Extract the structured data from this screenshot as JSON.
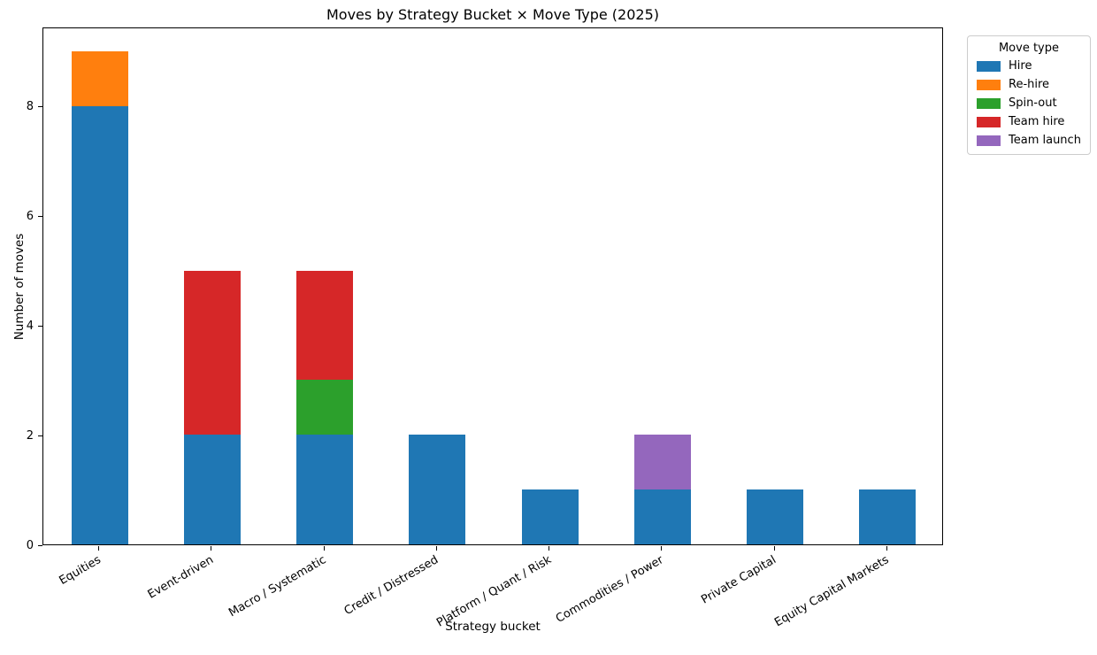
{
  "chart_data": {
    "type": "bar",
    "stacked": true,
    "title": "Moves by Strategy Bucket × Move Type (2025)",
    "xlabel": "Strategy bucket",
    "ylabel": "Number of moves",
    "categories": [
      "Equities",
      "Event-driven",
      "Macro / Systematic",
      "Credit / Distressed",
      "Platform / Quant / Risk",
      "Commodities / Power",
      "Private Capital",
      "Equity Capital Markets"
    ],
    "series": [
      {
        "name": "Hire",
        "color": "#1f77b4",
        "values": [
          8,
          2,
          2,
          2,
          1,
          1,
          1,
          1
        ]
      },
      {
        "name": "Re-hire",
        "color": "#ff7f0e",
        "values": [
          1,
          0,
          0,
          0,
          0,
          0,
          0,
          0
        ]
      },
      {
        "name": "Spin-out",
        "color": "#2ca02c",
        "values": [
          0,
          0,
          1,
          0,
          0,
          0,
          0,
          0
        ]
      },
      {
        "name": "Team hire",
        "color": "#d62728",
        "values": [
          0,
          3,
          2,
          0,
          0,
          0,
          0,
          0
        ]
      },
      {
        "name": "Team launch",
        "color": "#9467bd",
        "values": [
          0,
          0,
          0,
          0,
          0,
          1,
          0,
          0
        ]
      }
    ],
    "totals_by_category": [
      9,
      5,
      5,
      2,
      1,
      2,
      1,
      1
    ],
    "ylim": [
      0,
      9.45
    ],
    "yticks": [
      0,
      2,
      4,
      6,
      8
    ],
    "grid": false,
    "legend": {
      "title": "Move type",
      "position": "upper-right"
    }
  }
}
